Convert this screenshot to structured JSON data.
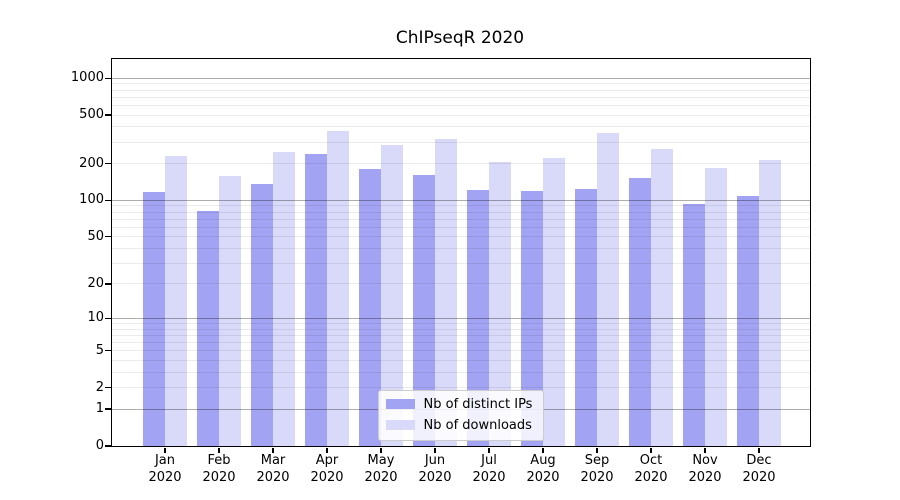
{
  "chart_data": {
    "type": "bar",
    "title": "ChIPseqR 2020",
    "months": [
      "Jan",
      "Feb",
      "Mar",
      "Apr",
      "May",
      "Jun",
      "Jul",
      "Aug",
      "Sep",
      "Oct",
      "Nov",
      "Dec"
    ],
    "year": "2020",
    "series": [
      {
        "name": "Nb of distinct IPs",
        "color": "#a3a3f3",
        "values": [
          115,
          81,
          134,
          240,
          178,
          161,
          120,
          119,
          122,
          150,
          93,
          108
        ]
      },
      {
        "name": "Nb of downloads",
        "color": "#d9d9fa",
        "values": [
          227,
          158,
          249,
          370,
          280,
          318,
          206,
          222,
          356,
          259,
          184,
          214
        ]
      }
    ],
    "yscale": "log10(1+x)",
    "yticks": [
      0,
      1,
      2,
      5,
      10,
      20,
      50,
      100,
      200,
      500,
      1000
    ],
    "ylim": [
      0,
      1434
    ],
    "grid_major_at": [
      1,
      10,
      100,
      1000
    ],
    "grid_minor_per_decade": [
      2,
      3,
      4,
      5,
      6,
      7,
      8,
      9
    ],
    "legend_position": "lower center",
    "axis_color": "#000000",
    "grid_color": "#b0b0b0"
  }
}
